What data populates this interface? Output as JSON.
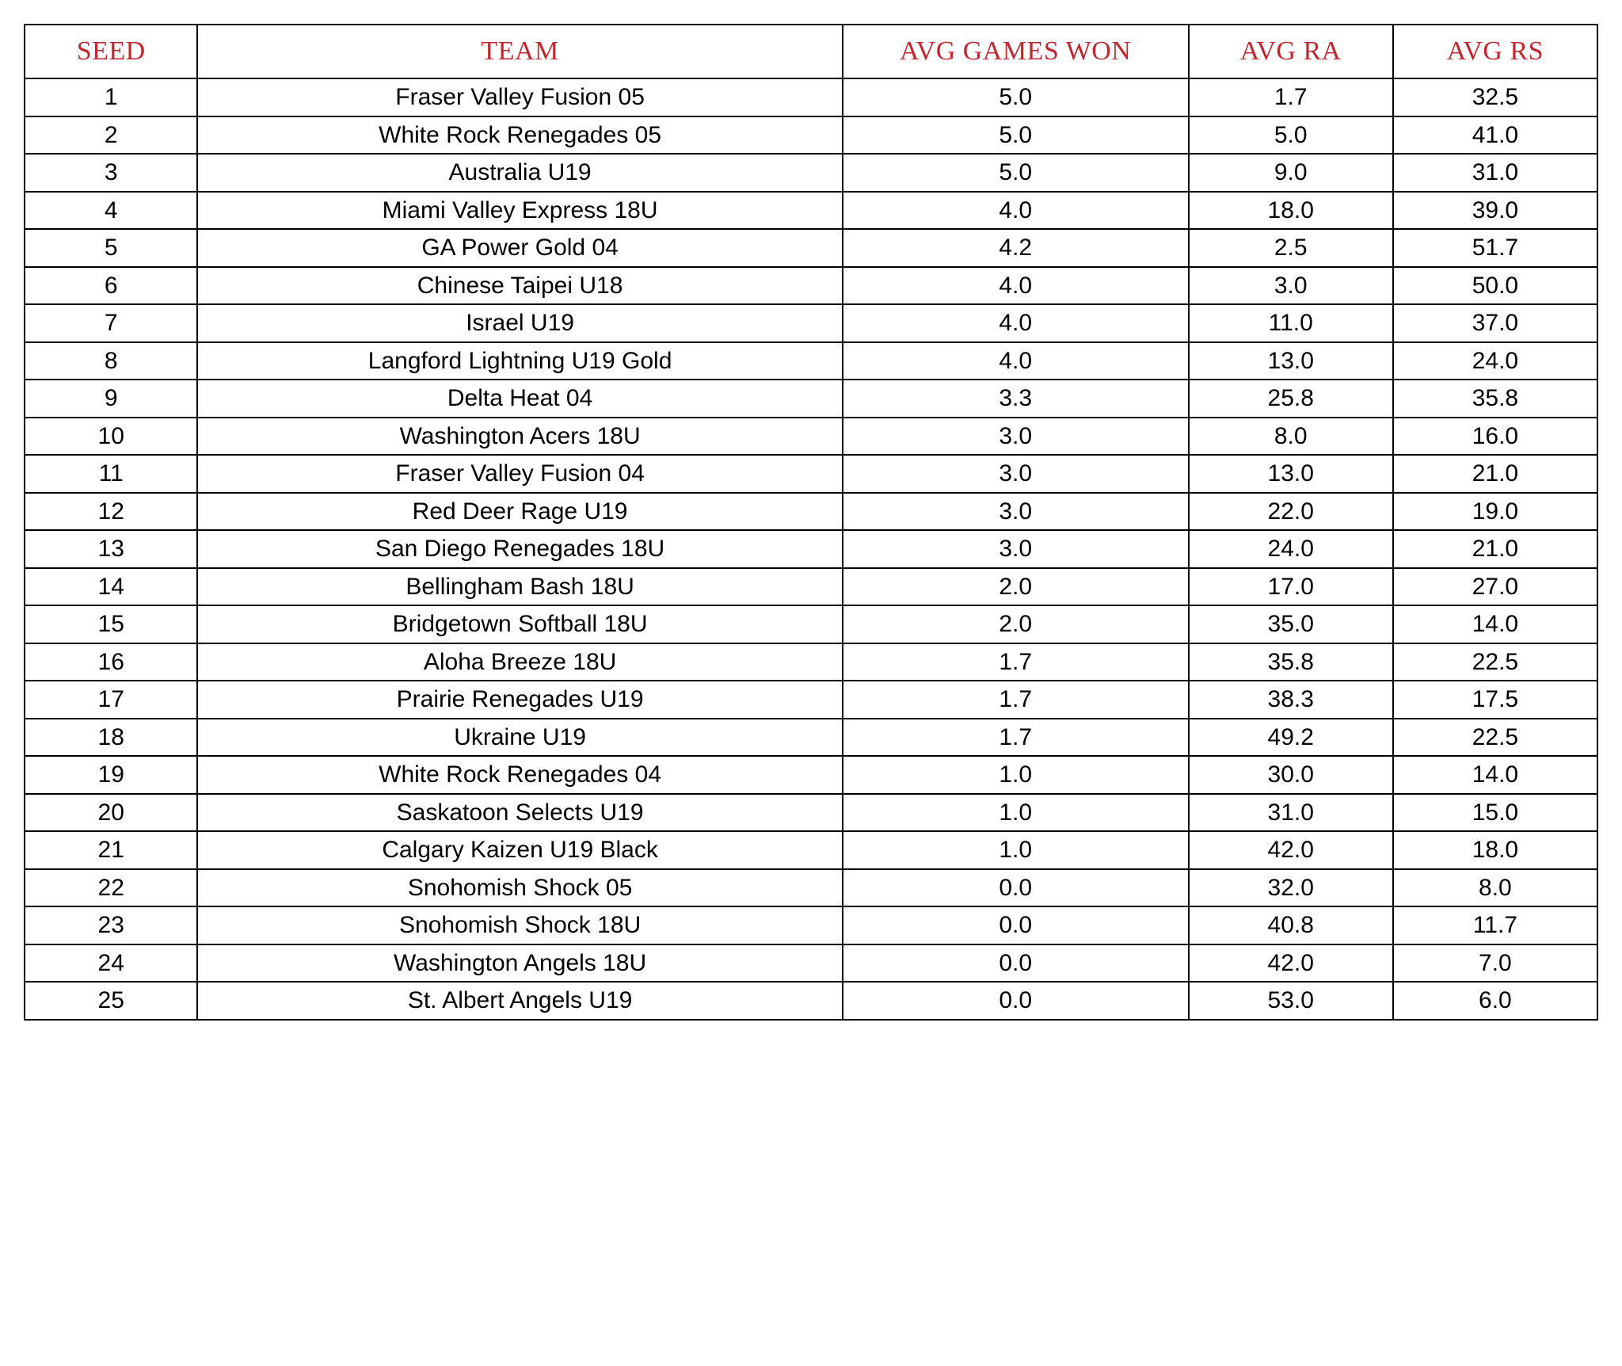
{
  "table": {
    "header_color": "#c1272d",
    "border_color": "#000000",
    "background_color": "#ffffff",
    "text_color": "#000000",
    "header_font_family": "Georgia, 'Times New Roman', serif",
    "body_font_family": "'Helvetica Neue', Helvetica, Arial, sans-serif",
    "header_fontsize": 34,
    "body_fontsize": 30,
    "columns": [
      {
        "key": "seed",
        "label": "SEED",
        "width_pct": 11,
        "align": "center"
      },
      {
        "key": "team",
        "label": "TEAM",
        "width_pct": 41,
        "align": "center"
      },
      {
        "key": "won",
        "label": "AVG GAMES WON",
        "width_pct": 22,
        "align": "center"
      },
      {
        "key": "ra",
        "label": "AVG RA",
        "width_pct": 13,
        "align": "center"
      },
      {
        "key": "rs",
        "label": "AVG RS",
        "width_pct": 13,
        "align": "center"
      }
    ],
    "rows": [
      {
        "seed": "1",
        "team": "Fraser Valley Fusion 05",
        "won": "5.0",
        "ra": "1.7",
        "rs": "32.5"
      },
      {
        "seed": "2",
        "team": "White Rock Renegades 05",
        "won": "5.0",
        "ra": "5.0",
        "rs": "41.0"
      },
      {
        "seed": "3",
        "team": "Australia U19",
        "won": "5.0",
        "ra": "9.0",
        "rs": "31.0"
      },
      {
        "seed": "4",
        "team": "Miami Valley Express 18U",
        "won": "4.0",
        "ra": "18.0",
        "rs": "39.0"
      },
      {
        "seed": "5",
        "team": "GA Power Gold 04",
        "won": "4.2",
        "ra": "2.5",
        "rs": "51.7"
      },
      {
        "seed": "6",
        "team": "Chinese Taipei U18",
        "won": "4.0",
        "ra": "3.0",
        "rs": "50.0"
      },
      {
        "seed": "7",
        "team": "Israel U19",
        "won": "4.0",
        "ra": "11.0",
        "rs": "37.0"
      },
      {
        "seed": "8",
        "team": "Langford Lightning U19 Gold",
        "won": "4.0",
        "ra": "13.0",
        "rs": "24.0"
      },
      {
        "seed": "9",
        "team": "Delta Heat 04",
        "won": "3.3",
        "ra": "25.8",
        "rs": "35.8"
      },
      {
        "seed": "10",
        "team": "Washington Acers 18U",
        "won": "3.0",
        "ra": "8.0",
        "rs": "16.0"
      },
      {
        "seed": "11",
        "team": "Fraser Valley Fusion 04",
        "won": "3.0",
        "ra": "13.0",
        "rs": "21.0"
      },
      {
        "seed": "12",
        "team": "Red Deer Rage U19",
        "won": "3.0",
        "ra": "22.0",
        "rs": "19.0"
      },
      {
        "seed": "13",
        "team": "San Diego Renegades 18U",
        "won": "3.0",
        "ra": "24.0",
        "rs": "21.0"
      },
      {
        "seed": "14",
        "team": "Bellingham Bash 18U",
        "won": "2.0",
        "ra": "17.0",
        "rs": "27.0"
      },
      {
        "seed": "15",
        "team": "Bridgetown Softball 18U",
        "won": "2.0",
        "ra": "35.0",
        "rs": "14.0"
      },
      {
        "seed": "16",
        "team": "Aloha Breeze 18U",
        "won": "1.7",
        "ra": "35.8",
        "rs": "22.5"
      },
      {
        "seed": "17",
        "team": "Prairie Renegades U19",
        "won": "1.7",
        "ra": "38.3",
        "rs": "17.5"
      },
      {
        "seed": "18",
        "team": "Ukraine U19",
        "won": "1.7",
        "ra": "49.2",
        "rs": "22.5"
      },
      {
        "seed": "19",
        "team": "White Rock Renegades 04",
        "won": "1.0",
        "ra": "30.0",
        "rs": "14.0"
      },
      {
        "seed": "20",
        "team": "Saskatoon Selects U19",
        "won": "1.0",
        "ra": "31.0",
        "rs": "15.0"
      },
      {
        "seed": "21",
        "team": "Calgary Kaizen U19 Black",
        "won": "1.0",
        "ra": "42.0",
        "rs": "18.0"
      },
      {
        "seed": "22",
        "team": "Snohomish Shock 05",
        "won": "0.0",
        "ra": "32.0",
        "rs": "8.0"
      },
      {
        "seed": "23",
        "team": "Snohomish Shock 18U",
        "won": "0.0",
        "ra": "40.8",
        "rs": "11.7"
      },
      {
        "seed": "24",
        "team": "Washington Angels 18U",
        "won": "0.0",
        "ra": "42.0",
        "rs": "7.0"
      },
      {
        "seed": "25",
        "team": "St. Albert Angels U19",
        "won": "0.0",
        "ra": "53.0",
        "rs": "6.0"
      }
    ]
  }
}
